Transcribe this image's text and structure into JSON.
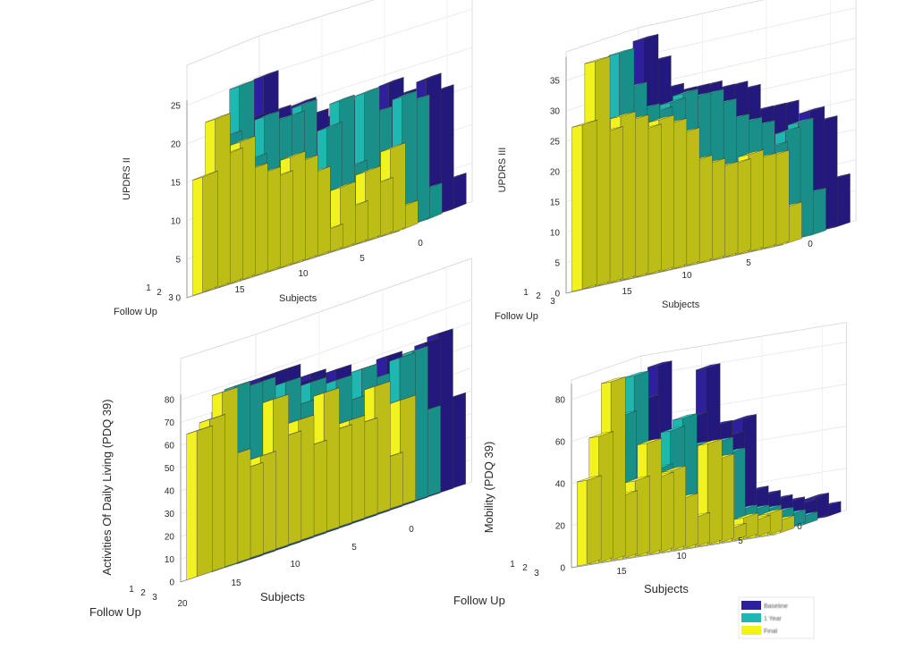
{
  "legend": {
    "entries": [
      {
        "name": "Baseline",
        "color": "#2d1f9e"
      },
      {
        "name": "1 Year",
        "color": "#1fb8b0"
      },
      {
        "name": "Final",
        "color": "#f2f21e"
      }
    ]
  },
  "chart_data": [
    {
      "type": "bar3",
      "panel": "top-left",
      "zlabel": "UPDRS II",
      "xlabel": "Subjects",
      "ylabel": "Follow Up",
      "subject_ticks": [
        "0",
        "5",
        "10",
        "15"
      ],
      "followup_ticks": [
        "1",
        "2",
        "3"
      ],
      "z_ticks": [
        "0",
        "5",
        "10",
        "15",
        "20",
        "25"
      ],
      "zlim": [
        0,
        25
      ],
      "series": [
        {
          "name": "Follow Up 1",
          "values": [
            20,
            25,
            20,
            19,
            20,
            18,
            17,
            12,
            18,
            18,
            11,
            19,
            17,
            12,
            18,
            16,
            4
          ]
        },
        {
          "name": "Follow Up 2",
          "values": [
            19,
            25,
            15,
            20,
            19,
            19,
            20,
            10,
            16,
            19,
            10,
            19,
            16,
            10,
            17,
            16,
            4
          ]
        },
        {
          "name": "Follow Up 3",
          "values": [
            15,
            22,
            17,
            18,
            14,
            13,
            12,
            14,
            13,
            11,
            3,
            8,
            5,
            9,
            7,
            11,
            3
          ]
        }
      ]
    },
    {
      "type": "bar3",
      "panel": "top-right",
      "zlabel": "UPDRS III",
      "xlabel": "Subjects",
      "ylabel": "Follow Up",
      "subject_ticks": [
        "0",
        "5",
        "10",
        "15"
      ],
      "followup_ticks": [
        "1",
        "2",
        "3"
      ],
      "z_ticks": [
        "0",
        "5",
        "10",
        "15",
        "20",
        "25",
        "30",
        "35"
      ],
      "zlim": [
        0,
        38
      ],
      "series": [
        {
          "name": "Follow Up 1",
          "values": [
            28,
            38,
            34,
            29,
            28,
            28,
            28,
            27,
            27,
            26,
            22,
            22,
            22,
            18,
            20,
            18,
            8
          ]
        },
        {
          "name": "Follow Up 2",
          "values": [
            26,
            37,
            31,
            27,
            26,
            27,
            28,
            27,
            27,
            25,
            22,
            21,
            20,
            16,
            18,
            19,
            7
          ]
        },
        {
          "name": "Follow Up 3",
          "values": [
            27,
            37,
            25,
            27,
            26,
            24,
            25,
            24,
            22,
            17,
            16,
            15,
            15,
            16,
            15,
            15,
            6
          ]
        }
      ]
    },
    {
      "type": "bar3",
      "panel": "bottom-left",
      "zlabel": "Activities Of Daily Living (PDQ 39)",
      "xlabel": "Subjects",
      "ylabel": "Follow Up",
      "subject_ticks": [
        "0",
        "5",
        "10",
        "15",
        "20"
      ],
      "followup_ticks": [
        "1",
        "2",
        "3"
      ],
      "z_ticks": [
        "0",
        "10",
        "20",
        "30",
        "40",
        "50",
        "60",
        "70",
        "80"
      ],
      "zlim": [
        0,
        80
      ],
      "series": [
        {
          "name": "Follow Up 1",
          "values": [
            70,
            78,
            78,
            78,
            70,
            72,
            62,
            70,
            62,
            66,
            56,
            68,
            62,
            50,
            68,
            70,
            40
          ]
        },
        {
          "name": "Follow Up 2",
          "values": [
            70,
            78,
            76,
            76,
            60,
            72,
            60,
            68,
            60,
            65,
            54,
            66,
            60,
            45,
            65,
            66,
            38
          ]
        },
        {
          "name": "Follow Up 3",
          "values": [
            64,
            67,
            77,
            48,
            40,
            43,
            66,
            48,
            53,
            40,
            61,
            43,
            45,
            42,
            56,
            23,
            46
          ]
        }
      ]
    },
    {
      "type": "bar3",
      "panel": "bottom-right",
      "zlabel": "Mobility (PDQ 39)",
      "xlabel": "Subjects",
      "ylabel": "Follow Up",
      "subject_ticks": [
        "0",
        "5",
        "10",
        "15"
      ],
      "followup_ticks": [
        "1",
        "2",
        "3"
      ],
      "z_ticks": [
        "0",
        "20",
        "40",
        "60",
        "80"
      ],
      "zlim": [
        0,
        85
      ],
      "series": [
        {
          "name": "Follow Up 1",
          "values": [
            50,
            70,
            85,
            32,
            40,
            58,
            80,
            52,
            46,
            53,
            18,
            15,
            12,
            10,
            8,
            10,
            5
          ]
        },
        {
          "name": "Follow Up 2",
          "values": [
            48,
            66,
            84,
            30,
            38,
            55,
            60,
            46,
            30,
            46,
            40,
            12,
            11,
            10,
            8,
            6,
            4
          ]
        },
        {
          "name": "Follow Up 3",
          "values": [
            40,
            60,
            85,
            30,
            36,
            53,
            36,
            38,
            24,
            14,
            48,
            40,
            6,
            10,
            8,
            10,
            6
          ]
        }
      ]
    }
  ]
}
